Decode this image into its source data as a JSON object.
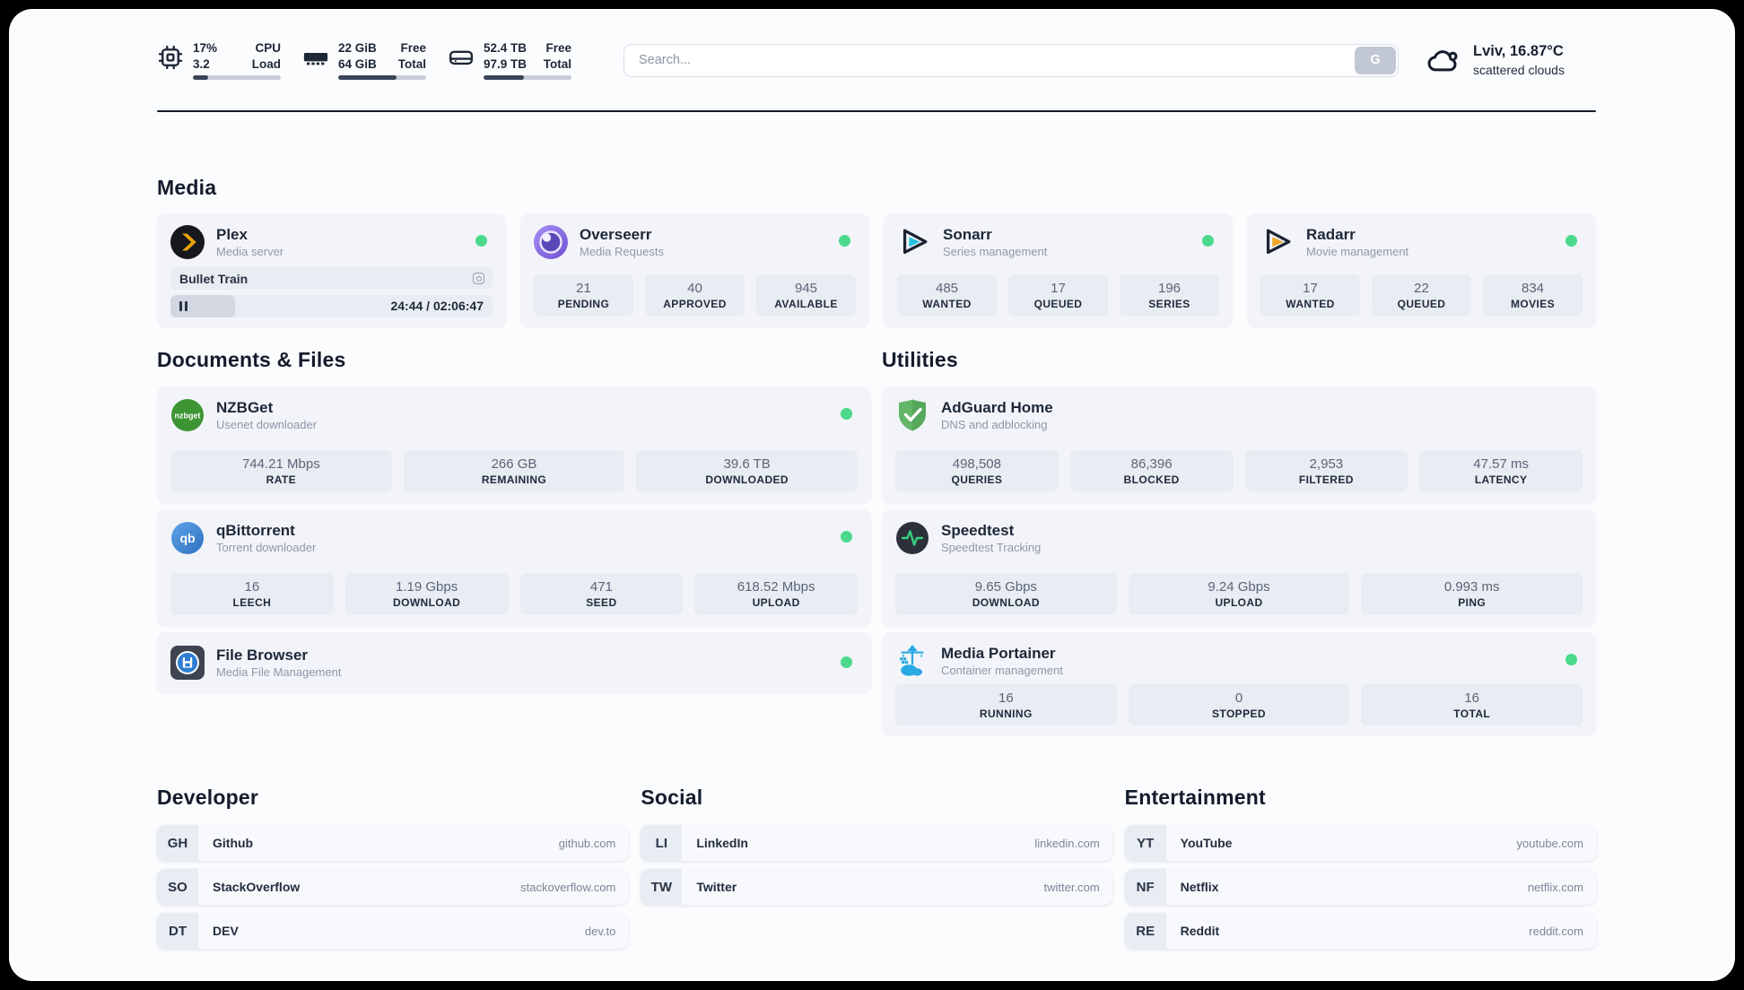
{
  "header": {
    "resources": [
      {
        "icon": "cpu-icon",
        "value_top": "17%",
        "label_top": "CPU",
        "value_bottom": "3.2",
        "label_bottom": "Load",
        "progress": 17
      },
      {
        "icon": "ram-icon",
        "value_top": "22 GiB",
        "label_top": "Free",
        "value_bottom": "64 GiB",
        "label_bottom": "Total",
        "progress": 66
      },
      {
        "icon": "disk-icon",
        "value_top": "52.4 TB",
        "label_top": "Free",
        "value_bottom": "97.9 TB",
        "label_bottom": "Total",
        "progress": 46
      }
    ],
    "search": {
      "placeholder": "Search...",
      "button_label": "G"
    },
    "weather": {
      "icon": "cloud-icon",
      "location_temp": "Lviv, 16.87°C",
      "condition": "scattered clouds"
    }
  },
  "media": {
    "title": "Media",
    "plex": {
      "icon": "plex-icon",
      "name": "Plex",
      "subtitle": "Media server",
      "online": true,
      "now_playing": "Bullet Train",
      "time_display": "24:44 / 02:06:47",
      "progress": 20
    },
    "apps": [
      {
        "icon": "overseerr-icon",
        "name": "Overseerr",
        "subtitle": "Media Requests",
        "online": true,
        "stats": [
          {
            "value": "21",
            "label": "PENDING"
          },
          {
            "value": "40",
            "label": "APPROVED"
          },
          {
            "value": "945",
            "label": "AVAILABLE"
          }
        ]
      },
      {
        "icon": "sonarr-icon",
        "name": "Sonarr",
        "subtitle": "Series management",
        "online": true,
        "stats": [
          {
            "value": "485",
            "label": "WANTED"
          },
          {
            "value": "17",
            "label": "QUEUED"
          },
          {
            "value": "196",
            "label": "SERIES"
          }
        ]
      },
      {
        "icon": "radarr-icon",
        "name": "Radarr",
        "subtitle": "Movie management",
        "online": true,
        "stats": [
          {
            "value": "17",
            "label": "WANTED"
          },
          {
            "value": "22",
            "label": "QUEUED"
          },
          {
            "value": "834",
            "label": "MOVIES"
          }
        ]
      }
    ]
  },
  "documents": {
    "title": "Documents & Files",
    "apps": [
      {
        "icon": "nzbget-icon",
        "name": "NZBGet",
        "subtitle": "Usenet downloader",
        "online": true,
        "stats": [
          {
            "value": "744.21 Mbps",
            "label": "RATE"
          },
          {
            "value": "266 GB",
            "label": "REMAINING"
          },
          {
            "value": "39.6 TB",
            "label": "DOWNLOADED"
          }
        ]
      },
      {
        "icon": "qbittorrent-icon",
        "name": "qBittorrent",
        "subtitle": "Torrent downloader",
        "online": true,
        "stats": [
          {
            "value": "16",
            "label": "LEECH"
          },
          {
            "value": "1.19 Gbps",
            "label": "DOWNLOAD"
          },
          {
            "value": "471",
            "label": "SEED"
          },
          {
            "value": "618.52 Mbps",
            "label": "UPLOAD"
          }
        ]
      },
      {
        "icon": "filebrowser-icon",
        "name": "File Browser",
        "subtitle": "Media File Management",
        "online": true,
        "stats": []
      }
    ]
  },
  "utilities": {
    "title": "Utilities",
    "apps": [
      {
        "icon": "adguard-icon",
        "name": "AdGuard Home",
        "subtitle": "DNS and adblocking",
        "stats": [
          {
            "value": "498,508",
            "label": "QUERIES"
          },
          {
            "value": "86,396",
            "label": "BLOCKED"
          },
          {
            "value": "2,953",
            "label": "FILTERED"
          },
          {
            "value": "47.57 ms",
            "label": "LATENCY"
          }
        ]
      },
      {
        "icon": "speedtest-icon",
        "name": "Speedtest",
        "subtitle": "Speedtest Tracking",
        "stats": [
          {
            "value": "9.65 Gbps",
            "label": "DOWNLOAD"
          },
          {
            "value": "9.24 Gbps",
            "label": "UPLOAD"
          },
          {
            "value": "0.993 ms",
            "label": "PING"
          }
        ]
      },
      {
        "icon": "portainer-icon",
        "name": "Media Portainer",
        "subtitle": "Container management",
        "online": true,
        "stats": [
          {
            "value": "16",
            "label": "RUNNING"
          },
          {
            "value": "0",
            "label": "STOPPED"
          },
          {
            "value": "16",
            "label": "TOTAL"
          }
        ]
      }
    ]
  },
  "links": {
    "sections": [
      {
        "title": "Developer",
        "items": [
          {
            "abbr": "GH",
            "name": "Github",
            "url": "github.com"
          },
          {
            "abbr": "SO",
            "name": "StackOverflow",
            "url": "stackoverflow.com"
          },
          {
            "abbr": "DT",
            "name": "DEV",
            "url": "dev.to"
          }
        ]
      },
      {
        "title": "Social",
        "items": [
          {
            "abbr": "LI",
            "name": "LinkedIn",
            "url": "linkedin.com"
          },
          {
            "abbr": "TW",
            "name": "Twitter",
            "url": "twitter.com"
          }
        ]
      },
      {
        "title": "Entertainment",
        "items": [
          {
            "abbr": "YT",
            "name": "YouTube",
            "url": "youtube.com"
          },
          {
            "abbr": "NF",
            "name": "Netflix",
            "url": "netflix.com"
          },
          {
            "abbr": "RE",
            "name": "Reddit",
            "url": "reddit.com"
          }
        ]
      }
    ]
  }
}
